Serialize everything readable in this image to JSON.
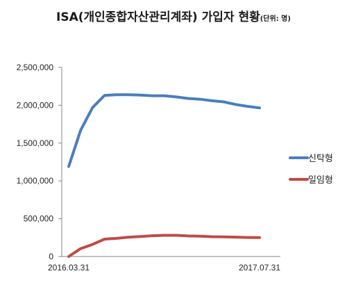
{
  "chart_data": {
    "type": "line",
    "title": "ISA(개인종합자산관리계좌) 가입자 현황",
    "subtitle": "(단위: 명)",
    "xlabel": "",
    "ylabel": "",
    "x_tick_labels": [
      "2016.03.31",
      "2017.07.31"
    ],
    "y_tick_labels": [
      "0",
      "500,000",
      "1,000,000",
      "1,500,000",
      "2,000,000",
      "2,500,000"
    ],
    "ylim": [
      0,
      2500000
    ],
    "grid": false,
    "legend_position": "right",
    "series": [
      {
        "name": "신탁형",
        "color": "#4a7ebb",
        "values": [
          1190000,
          1670000,
          1970000,
          2130000,
          2140000,
          2140000,
          2135000,
          2125000,
          2125000,
          2110000,
          2090000,
          2080000,
          2060000,
          2045000,
          2010000,
          1985000,
          1965000
        ]
      },
      {
        "name": "일임형",
        "color": "#be4b48",
        "values": [
          0,
          105000,
          160000,
          230000,
          240000,
          255000,
          265000,
          275000,
          280000,
          280000,
          272000,
          268000,
          262000,
          260000,
          256000,
          252000,
          250000
        ]
      }
    ]
  }
}
